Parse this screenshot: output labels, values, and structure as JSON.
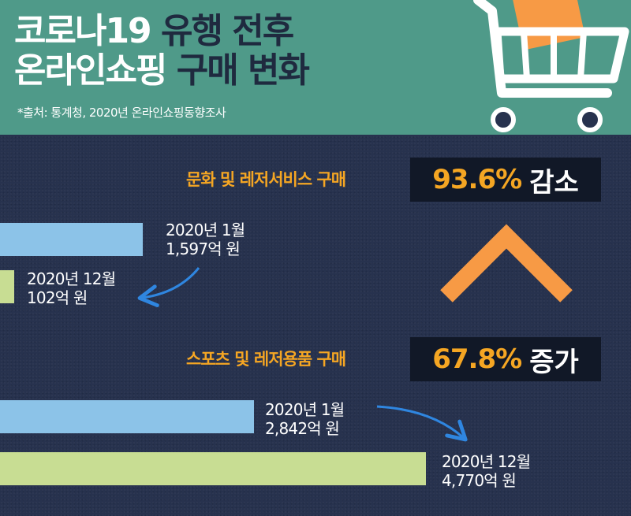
{
  "title": {
    "line1_white": "코로나19",
    "line1_dark": "유행 전후",
    "line2_white": "온라인쇼핑",
    "line2_dark": "구매 변화"
  },
  "source": "*출처: 통계청, 2020년 온라인쇼핑동향조사",
  "colors": {
    "header_bg": "#4f9a89",
    "background": "#27324e",
    "accent_orange": "#f5a623",
    "jan_bar": "#8cc3e8",
    "dec_bar": "#c8dd93",
    "arrow_blue": "#2f86e0",
    "chevron_orange": "#f79a45"
  },
  "icons": {
    "cart": "shopping-cart-icon"
  },
  "chart_data": {
    "type": "bar",
    "unit": "억 원",
    "xlim": [
      0,
      5000
    ],
    "groups": [
      {
        "category": "문화 및 레저서비스 구매",
        "change_value": "93.6%",
        "change_word": "감소",
        "bars": [
          {
            "period": "2020년 1월",
            "value": 1597,
            "value_text": "1,597억 원"
          },
          {
            "period": "2020년 12월",
            "value": 102,
            "value_text": "102억 원"
          }
        ]
      },
      {
        "category": "스포츠 및 레저용품 구매",
        "change_value": "67.8%",
        "change_word": "증가",
        "bars": [
          {
            "period": "2020년 1월",
            "value": 2842,
            "value_text": "2,842억 원"
          },
          {
            "period": "2020년 12월",
            "value": 4770,
            "value_text": "4,770억 원"
          }
        ]
      }
    ]
  }
}
